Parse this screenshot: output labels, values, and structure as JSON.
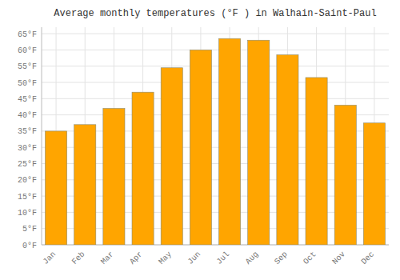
{
  "chart_data": {
    "type": "bar",
    "title": "Average monthly temperatures (°F ) in Walhain-Saint-Paul",
    "categories": [
      "Jan",
      "Feb",
      "Mar",
      "Apr",
      "May",
      "Jun",
      "Jul",
      "Aug",
      "Sep",
      "Oct",
      "Nov",
      "Dec"
    ],
    "values": [
      35,
      37,
      42,
      47,
      54.5,
      60,
      63.5,
      63,
      58.5,
      51.5,
      43,
      37.5
    ],
    "color": "#FFA500",
    "ylim": [
      0,
      67
    ],
    "yticks": [
      {
        "value": 0,
        "label": "0°F"
      },
      {
        "value": 5,
        "label": "5°F"
      },
      {
        "value": 10,
        "label": "10°F"
      },
      {
        "value": 15,
        "label": "15°F"
      },
      {
        "value": 20,
        "label": "20°F"
      },
      {
        "value": 25,
        "label": "25°F"
      },
      {
        "value": 30,
        "label": "30°F"
      },
      {
        "value": 35,
        "label": "35°F"
      },
      {
        "value": 40,
        "label": "40°F"
      },
      {
        "value": 45,
        "label": "45°F"
      },
      {
        "value": 50,
        "label": "50°F"
      },
      {
        "value": 55,
        "label": "55°F"
      },
      {
        "value": 60,
        "label": "60°F"
      },
      {
        "value": 65,
        "label": "65°F"
      }
    ],
    "grid": true
  }
}
